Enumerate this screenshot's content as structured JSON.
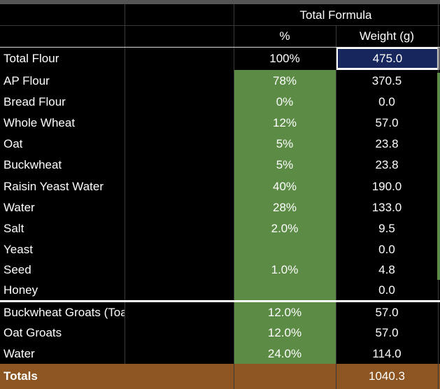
{
  "header": {
    "group_title": "Total Formula",
    "col_percent": "%",
    "col_weight": "Weight (g)"
  },
  "rows": [
    {
      "label": "Total Flour",
      "percent": "100%",
      "weight": "475.0"
    },
    {
      "label": "AP Flour",
      "percent": "78%",
      "weight": "370.5"
    },
    {
      "label": "Bread Flour",
      "percent": "0%",
      "weight": "0.0"
    },
    {
      "label": "Whole Wheat",
      "percent": "12%",
      "weight": "57.0"
    },
    {
      "label": "Oat",
      "percent": "5%",
      "weight": "23.8"
    },
    {
      "label": "Buckwheat",
      "percent": "5%",
      "weight": "23.8"
    },
    {
      "label": "Raisin Yeast Water",
      "percent": "40%",
      "weight": "190.0"
    },
    {
      "label": "Water",
      "percent": "28%",
      "weight": "133.0"
    },
    {
      "label": "Salt",
      "percent": "2.0%",
      "weight": "9.5"
    },
    {
      "label": "Yeast",
      "percent": "",
      "weight": "0.0"
    },
    {
      "label": "Seed",
      "percent": "1.0%",
      "weight": "4.8"
    },
    {
      "label": "Honey",
      "percent": "",
      "weight": "0.0"
    }
  ],
  "extras": [
    {
      "label": "Buckwheat Groats (Toasted)",
      "percent": "12.0%",
      "weight": "57.0"
    },
    {
      "label": "Oat Groats",
      "percent": "12.0%",
      "weight": "57.0"
    },
    {
      "label": "Water",
      "percent": "24.0%",
      "weight": "114.0"
    }
  ],
  "totals": {
    "label": "Totals",
    "weight": "1040.3"
  },
  "colors": {
    "green": "#5b8b45",
    "totals": "#8c5521",
    "selected": "#17275e",
    "grid": "#3a3a3a"
  }
}
